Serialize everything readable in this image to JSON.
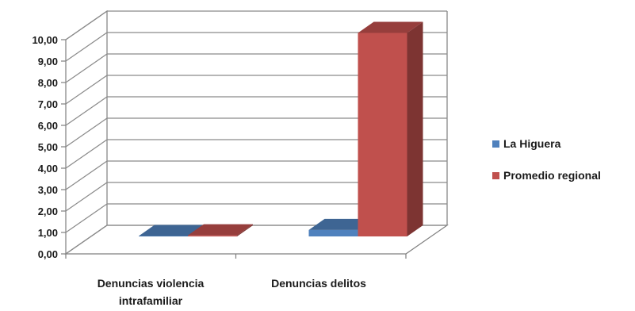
{
  "chart_data": {
    "type": "bar",
    "categories": [
      "Denuncias violencia intrafamiliar",
      "Denuncias delitos"
    ],
    "category_label_lines": [
      [
        "Denuncias violencia",
        "intrafamiliar"
      ],
      [
        "Denuncias delitos"
      ]
    ],
    "series": [
      {
        "name": "La Higuera",
        "values": [
          0.0,
          0.3
        ],
        "color": "#4f81bd"
      },
      {
        "name": "Promedio regional",
        "values": [
          0.05,
          9.5
        ],
        "color": "#c0504d"
      }
    ],
    "ylim": [
      0,
      10
    ],
    "y_ticks": [
      "0,00",
      "1,00",
      "2,00",
      "3,00",
      "4,00",
      "5,00",
      "6,00",
      "7,00",
      "8,00",
      "9,00",
      "10,00"
    ],
    "title": "",
    "xlabel": "",
    "ylabel": "",
    "grid": true,
    "legend_position": "right",
    "style": "3d-clustered-column"
  }
}
